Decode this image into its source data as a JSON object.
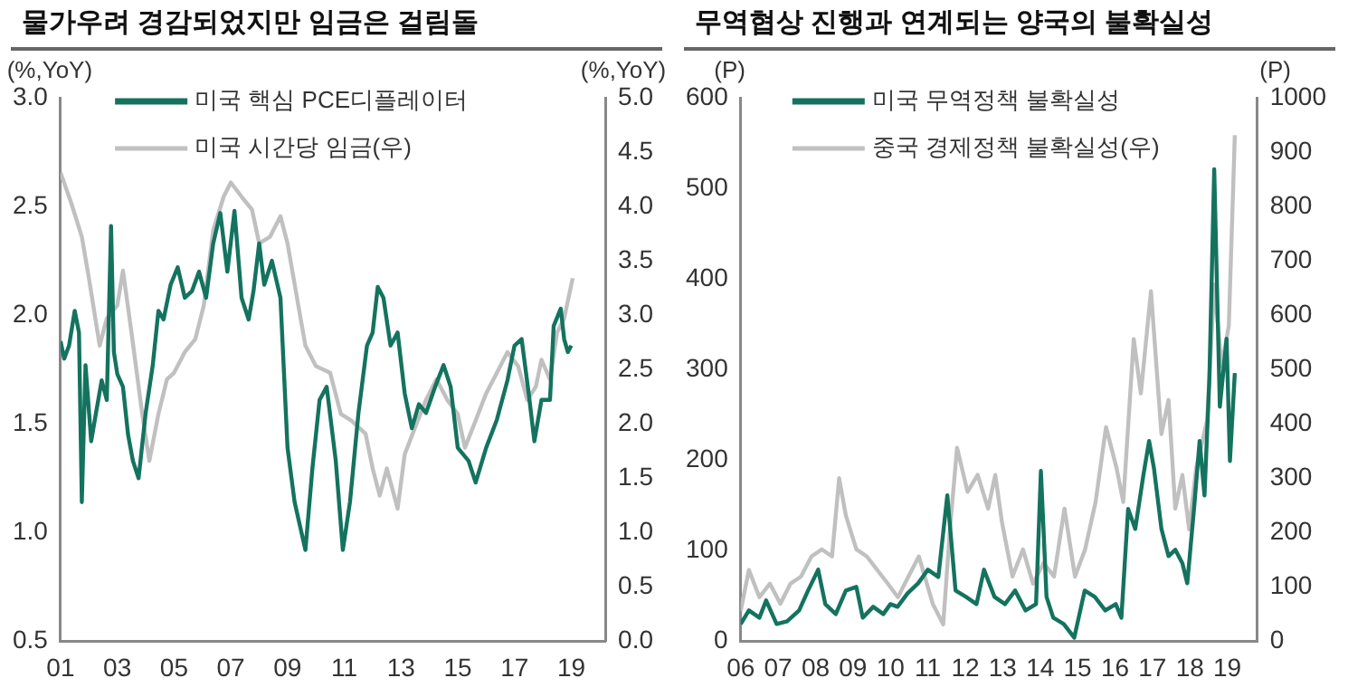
{
  "chart_data": [
    {
      "type": "line",
      "title": "물가우려 경감되었지만 임금은 걸림돌",
      "ylabel": "(%,YoY)",
      "y2label": "(%,YoY)",
      "xlim": [
        2001,
        2020.2
      ],
      "xticks": [
        {
          "value": 2001,
          "label": "01"
        },
        {
          "value": 2003,
          "label": "03"
        },
        {
          "value": 2005,
          "label": "05"
        },
        {
          "value": 2007,
          "label": "07"
        },
        {
          "value": 2009,
          "label": "09"
        },
        {
          "value": 2011,
          "label": "11"
        },
        {
          "value": 2013,
          "label": "13"
        },
        {
          "value": 2015,
          "label": "15"
        },
        {
          "value": 2017,
          "label": "17"
        },
        {
          "value": 2019,
          "label": "19"
        }
      ],
      "ylim": [
        0.5,
        3.0
      ],
      "yticks": [
        {
          "value": 0.5,
          "label": "0.5"
        },
        {
          "value": 1.0,
          "label": "1.0"
        },
        {
          "value": 1.5,
          "label": "1.5"
        },
        {
          "value": 2.0,
          "label": "2.0"
        },
        {
          "value": 2.5,
          "label": "2.5"
        },
        {
          "value": 3.0,
          "label": "3.0"
        }
      ],
      "y2lim": [
        0,
        5.0
      ],
      "y2ticks": [
        {
          "value": 0,
          "label": "0.0"
        },
        {
          "value": 0.5,
          "label": "0.5"
        },
        {
          "value": 1.0,
          "label": "1.0"
        },
        {
          "value": 1.5,
          "label": "1.5"
        },
        {
          "value": 2.0,
          "label": "2.0"
        },
        {
          "value": 2.5,
          "label": "2.5"
        },
        {
          "value": 3.0,
          "label": "3.0"
        },
        {
          "value": 3.5,
          "label": "3.5"
        },
        {
          "value": 4.0,
          "label": "4.0"
        },
        {
          "value": 4.5,
          "label": "4.5"
        },
        {
          "value": 5.0,
          "label": "5.0"
        }
      ],
      "grid": false,
      "legend": "top",
      "marker": "none",
      "line_style": "solid",
      "series": [
        {
          "name": "미국 핵심 PCE디플레이터",
          "color": "#14735f",
          "x": [
            2001.0,
            2001.13,
            2001.3,
            2001.5,
            2001.65,
            2001.75,
            2001.88,
            2002.08,
            2002.25,
            2002.45,
            2002.63,
            2002.78,
            2002.88,
            2003.0,
            2003.2,
            2003.38,
            2003.55,
            2003.75,
            2004.0,
            2004.25,
            2004.45,
            2004.63,
            2004.88,
            2005.13,
            2005.38,
            2005.63,
            2005.88,
            2006.13,
            2006.38,
            2006.63,
            2006.88,
            2007.13,
            2007.38,
            2007.63,
            2007.8,
            2008.0,
            2008.18,
            2008.45,
            2008.75,
            2009.0,
            2009.25,
            2009.63,
            2009.88,
            2010.13,
            2010.38,
            2010.7,
            2010.95,
            2011.2,
            2011.5,
            2011.8,
            2012.0,
            2012.18,
            2012.38,
            2012.63,
            2012.88,
            2013.13,
            2013.38,
            2013.63,
            2013.88,
            2014.2,
            2014.5,
            2014.75,
            2015.0,
            2015.38,
            2015.63,
            2016.0,
            2016.38,
            2016.75,
            2017.0,
            2017.25,
            2017.5,
            2017.7,
            2017.95,
            2018.25,
            2018.38,
            2018.63,
            2018.75,
            2018.88,
            2019.0
          ],
          "values": [
            1.88,
            1.8,
            1.86,
            2.02,
            1.92,
            1.14,
            1.77,
            1.42,
            1.55,
            1.7,
            1.61,
            2.41,
            1.83,
            1.73,
            1.67,
            1.45,
            1.33,
            1.25,
            1.55,
            1.77,
            2.02,
            1.98,
            2.14,
            2.22,
            2.08,
            2.11,
            2.2,
            2.08,
            2.33,
            2.47,
            2.2,
            2.48,
            2.08,
            1.98,
            2.11,
            2.33,
            2.14,
            2.25,
            2.08,
            1.39,
            1.14,
            0.92,
            1.3,
            1.61,
            1.67,
            1.33,
            0.92,
            1.14,
            1.55,
            1.86,
            1.92,
            2.13,
            2.08,
            1.86,
            1.92,
            1.64,
            1.48,
            1.59,
            1.55,
            1.67,
            1.77,
            1.67,
            1.39,
            1.33,
            1.23,
            1.39,
            1.52,
            1.7,
            1.86,
            1.89,
            1.64,
            1.42,
            1.61,
            1.61,
            1.95,
            2.03,
            1.89,
            1.83,
            1.86
          ]
        },
        {
          "name": "미국 시간당 임금(우)",
          "color": "#c0c0c0",
          "axis": "y2",
          "x": [
            2001.0,
            2001.38,
            2001.75,
            2002.0,
            2002.38,
            2002.63,
            2003.0,
            2003.2,
            2003.5,
            2003.88,
            2004.13,
            2004.45,
            2004.75,
            2005.0,
            2005.38,
            2005.75,
            2006.05,
            2006.38,
            2006.75,
            2007.0,
            2007.38,
            2007.75,
            2008.0,
            2008.38,
            2008.75,
            2009.0,
            2009.38,
            2009.63,
            2010.0,
            2010.5,
            2010.88,
            2011.25,
            2011.75,
            2012.0,
            2012.25,
            2012.5,
            2012.88,
            2013.13,
            2013.5,
            2013.88,
            2014.25,
            2014.63,
            2015.0,
            2015.25,
            2015.63,
            2016.0,
            2016.38,
            2016.75,
            2017.13,
            2017.45,
            2017.75,
            2017.95,
            2018.25,
            2018.5,
            2018.75,
            2019.05
          ],
          "values": [
            4.31,
            4.03,
            3.72,
            3.34,
            2.72,
            2.97,
            3.09,
            3.41,
            2.84,
            2.09,
            1.66,
            2.09,
            2.41,
            2.47,
            2.66,
            2.78,
            3.09,
            3.78,
            4.09,
            4.22,
            4.09,
            3.97,
            3.66,
            3.72,
            3.91,
            3.66,
            3.09,
            2.72,
            2.53,
            2.47,
            2.09,
            2.03,
            1.91,
            1.59,
            1.34,
            1.59,
            1.22,
            1.72,
            1.97,
            2.22,
            2.41,
            2.22,
            2.09,
            1.78,
            2.03,
            2.28,
            2.47,
            2.66,
            2.53,
            2.22,
            2.34,
            2.59,
            2.41,
            2.84,
            2.97,
            3.34
          ]
        }
      ]
    },
    {
      "type": "line",
      "title": "무역협상 진행과 연계되는 양국의 불확실성",
      "ylabel": "(P)",
      "y2label": "(P)",
      "xlim": [
        2006,
        2019.8
      ],
      "xticks": [
        {
          "value": 2006,
          "label": "06"
        },
        {
          "value": 2007,
          "label": "07"
        },
        {
          "value": 2008,
          "label": "08"
        },
        {
          "value": 2009,
          "label": "09"
        },
        {
          "value": 2010,
          "label": "10"
        },
        {
          "value": 2011,
          "label": "11"
        },
        {
          "value": 2012,
          "label": "12"
        },
        {
          "value": 2013,
          "label": "13"
        },
        {
          "value": 2014,
          "label": "14"
        },
        {
          "value": 2015,
          "label": "15"
        },
        {
          "value": 2016,
          "label": "16"
        },
        {
          "value": 2017,
          "label": "17"
        },
        {
          "value": 2018,
          "label": "18"
        },
        {
          "value": 2019,
          "label": "19"
        }
      ],
      "ylim": [
        0,
        600
      ],
      "yticks": [
        0,
        100,
        200,
        300,
        400,
        500,
        600
      ],
      "y2lim": [
        0,
        1000
      ],
      "y2ticks": [
        0,
        100,
        200,
        300,
        400,
        500,
        600,
        700,
        800,
        900,
        1000
      ],
      "grid": false,
      "legend": "top",
      "marker": "none",
      "line_style": "solid",
      "series": [
        {
          "name": "미국 무역정책 불확실성",
          "color": "#14735f",
          "x": [
            2006.0,
            2006.22,
            2006.5,
            2006.68,
            2006.96,
            2007.24,
            2007.56,
            2007.8,
            2008.07,
            2008.26,
            2008.54,
            2008.81,
            2009.09,
            2009.26,
            2009.54,
            2009.81,
            2010.0,
            2010.19,
            2010.46,
            2010.74,
            2011.0,
            2011.28,
            2011.52,
            2011.74,
            2012.02,
            2012.3,
            2012.5,
            2012.78,
            2013.06,
            2013.33,
            2013.61,
            2013.89,
            2014.02,
            2014.17,
            2014.35,
            2014.63,
            2014.91,
            2015.19,
            2015.46,
            2015.74,
            2016.02,
            2016.17,
            2016.35,
            2016.54,
            2016.76,
            2016.91,
            2017.04,
            2017.24,
            2017.43,
            2017.61,
            2017.8,
            2017.93,
            2018.11,
            2018.26,
            2018.39,
            2018.52,
            2018.65,
            2018.8,
            2018.98,
            2019.07,
            2019.2
          ],
          "values": [
            19,
            34,
            26,
            45,
            19,
            22,
            34,
            56,
            79,
            41,
            30,
            56,
            60,
            26,
            38,
            30,
            41,
            38,
            53,
            64,
            79,
            71,
            161,
            56,
            49,
            41,
            79,
            49,
            41,
            56,
            34,
            41,
            188,
            49,
            26,
            19,
            4,
            56,
            49,
            34,
            41,
            26,
            146,
            124,
            184,
            221,
            191,
            124,
            94,
            101,
            86,
            64,
            146,
            221,
            161,
            289,
            521,
            259,
            334,
            199,
            296
          ]
        },
        {
          "name": "중국 경제정책 불확실성(우)",
          "color": "#c0c0c0",
          "axis": "y2",
          "x": [
            2006.0,
            2006.22,
            2006.5,
            2006.78,
            2007.06,
            2007.33,
            2007.61,
            2007.89,
            2008.17,
            2008.44,
            2008.63,
            2008.81,
            2009.09,
            2009.37,
            2009.65,
            2009.93,
            2010.2,
            2010.48,
            2010.76,
            2011.13,
            2011.41,
            2011.59,
            2011.78,
            2012.06,
            2012.33,
            2012.61,
            2012.8,
            2012.98,
            2013.26,
            2013.54,
            2013.81,
            2014.09,
            2014.37,
            2014.65,
            2014.93,
            2015.2,
            2015.48,
            2015.76,
            2016.04,
            2016.22,
            2016.5,
            2016.69,
            2016.96,
            2017.24,
            2017.43,
            2017.61,
            2017.8,
            2017.98,
            2018.17,
            2018.46,
            2018.65,
            2018.85,
            2019.04,
            2019.2
          ],
          "values": [
            56,
            131,
            81,
            106,
            69,
            106,
            119,
            156,
            169,
            156,
            300,
            231,
            169,
            156,
            131,
            106,
            81,
            119,
            156,
            69,
            31,
            206,
            356,
            275,
            306,
            244,
            306,
            219,
            119,
            169,
            106,
            144,
            119,
            244,
            119,
            169,
            256,
            394,
            319,
            256,
            556,
            456,
            644,
            381,
            444,
            244,
            306,
            206,
            319,
            406,
            656,
            506,
            581,
            931
          ]
        }
      ]
    }
  ]
}
